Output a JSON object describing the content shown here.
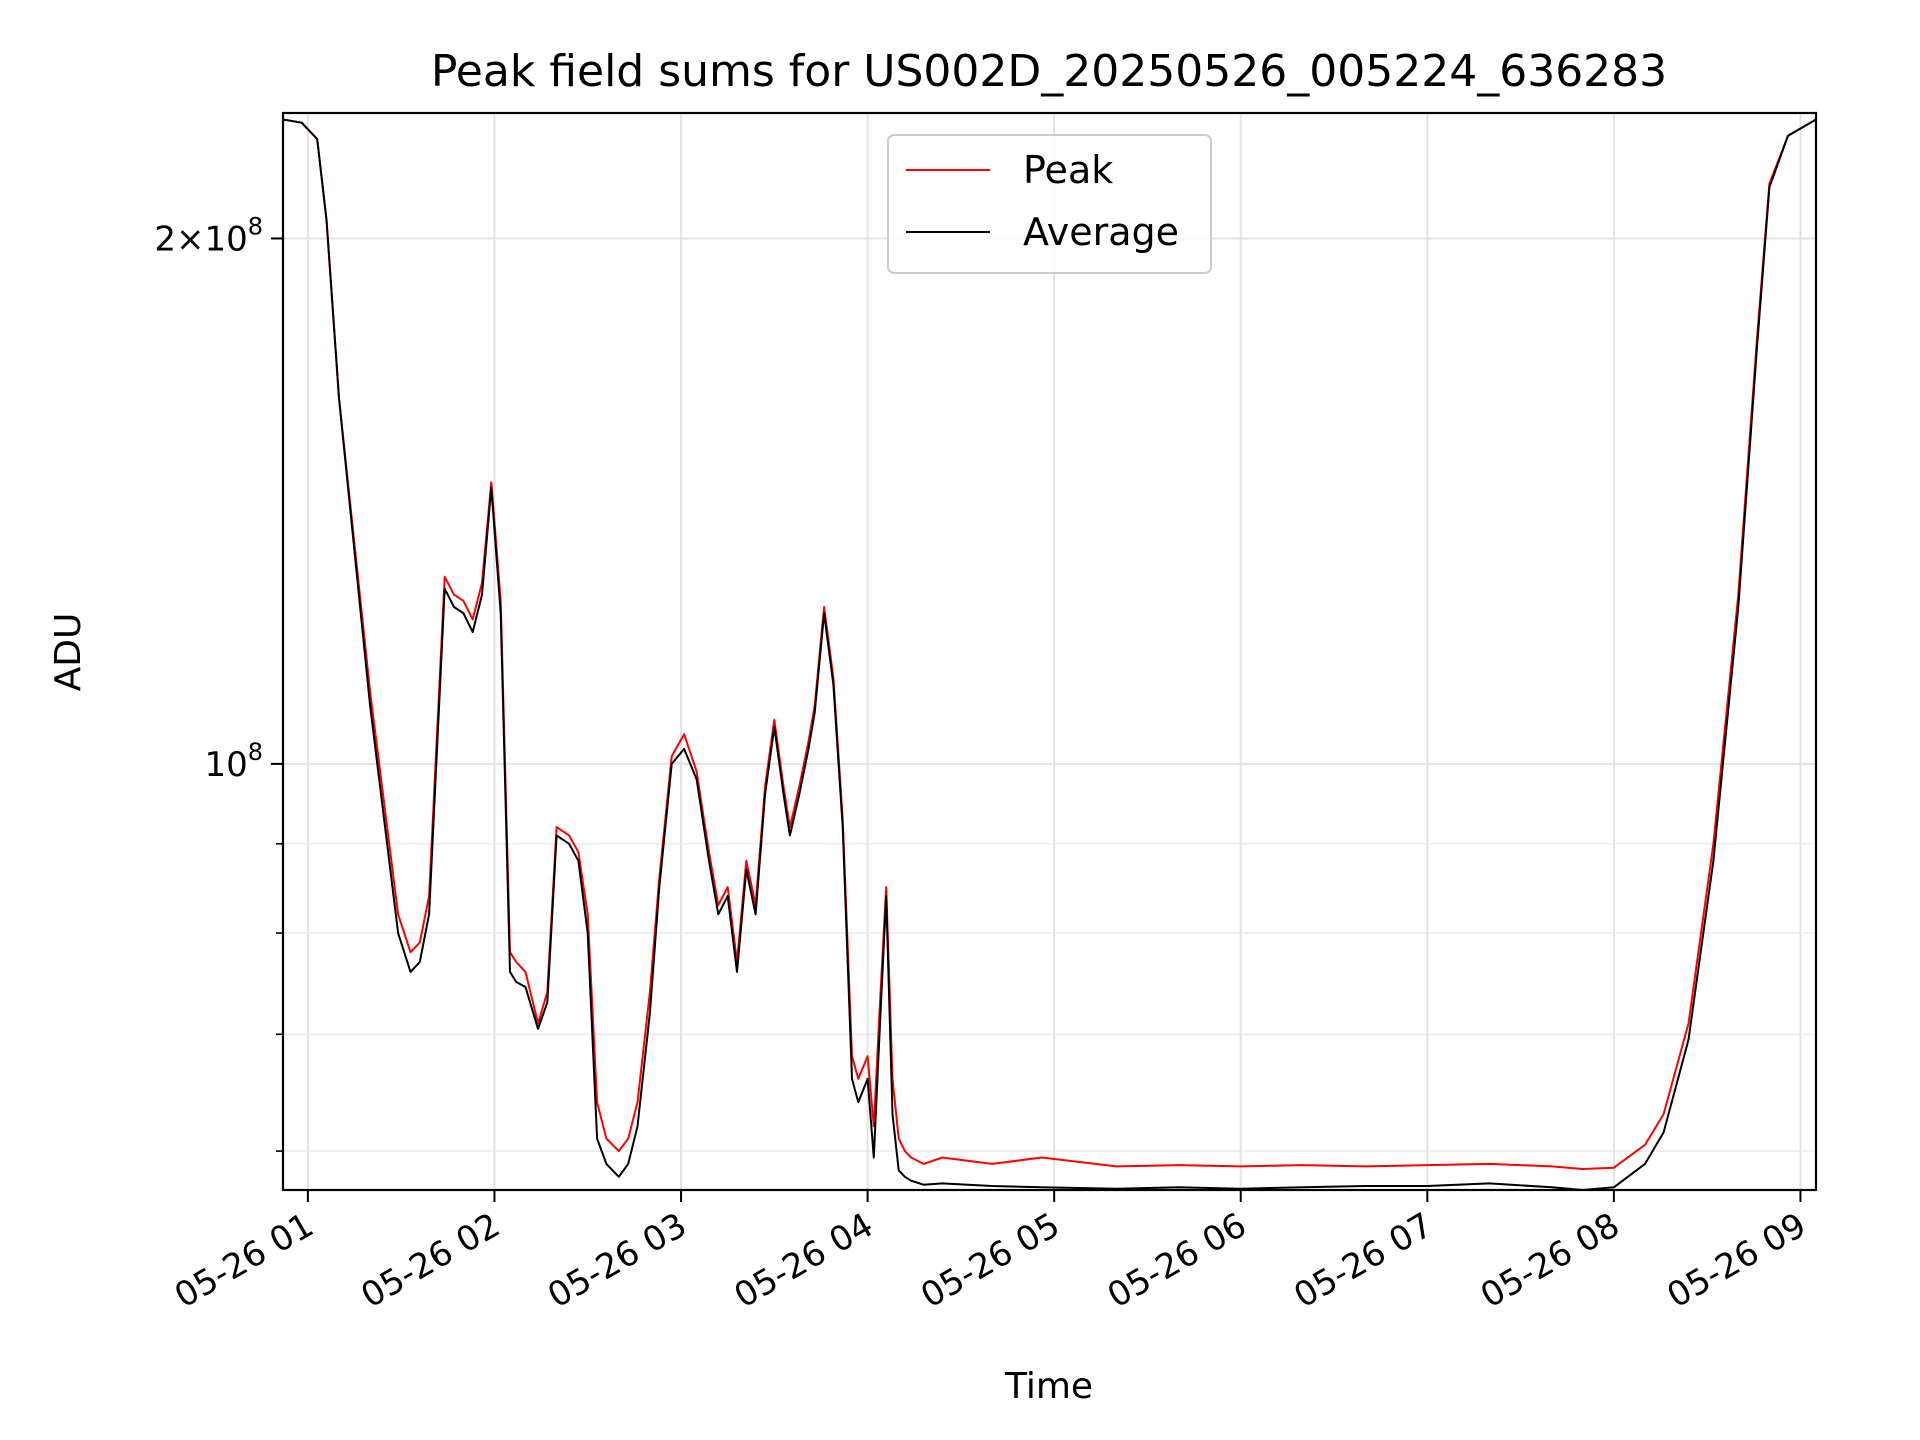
{
  "chart_data": {
    "type": "line",
    "title": "Peak field sums for US002D_20250526_005224_636283",
    "xlabel": "Time",
    "ylabel": "ADU",
    "y_scale": "log",
    "ylim": [
      57000000,
      236000000
    ],
    "xlim": [
      "2025-05-26 00:52",
      "2025-05-26 09:05"
    ],
    "grid": true,
    "legend_position": "upper center",
    "x_ticks": [
      "05-26 01",
      "05-26 02",
      "05-26 03",
      "05-26 04",
      "05-26 05",
      "05-26 06",
      "05-26 07",
      "05-26 08",
      "05-26 09"
    ],
    "y_ticks": [
      {
        "value": 200000000,
        "label_main": "2×10",
        "label_exp": "8"
      },
      {
        "value": 100000000,
        "label_main": "10",
        "label_exp": "8"
      }
    ],
    "y_minor_ticks": [
      60000000,
      70000000,
      80000000,
      90000000
    ],
    "series": [
      {
        "name": "Peak",
        "color": "#ff0000",
        "x": [
          "00:52",
          "00:58",
          "01:03",
          "01:06",
          "01:10",
          "01:20",
          "01:29",
          "01:33",
          "01:36",
          "01:39",
          "01:44",
          "01:47",
          "01:50",
          "01:53",
          "01:56",
          "01:59",
          "02:02",
          "02:05",
          "02:07",
          "02:10",
          "02:14",
          "02:17",
          "02:20",
          "02:24",
          "02:27",
          "02:30",
          "02:33",
          "02:36",
          "02:40",
          "02:43",
          "02:46",
          "02:50",
          "02:53",
          "02:57",
          "03:01",
          "03:05",
          "03:09",
          "03:12",
          "03:15",
          "03:18",
          "03:21",
          "03:24",
          "03:27",
          "03:30",
          "03:33",
          "03:35",
          "03:38",
          "03:41",
          "03:43",
          "03:46",
          "03:49",
          "03:52",
          "03:55",
          "03:57",
          "04:00",
          "04:02",
          "04:04",
          "04:06",
          "04:08",
          "04:10",
          "04:12",
          "04:14",
          "04:18",
          "04:24",
          "04:40",
          "04:56",
          "05:20",
          "05:40",
          "06:00",
          "06:20",
          "06:40",
          "07:00",
          "07:20",
          "07:40",
          "07:50",
          "08:00",
          "08:10",
          "08:16",
          "08:24",
          "08:32",
          "08:40",
          "08:46",
          "08:50",
          "08:56",
          "09:05"
        ],
        "y": [
          234000000,
          233000000,
          228000000,
          205000000,
          162000000,
          110000000,
          82000000,
          78000000,
          79000000,
          84000000,
          128000000,
          125000000,
          124000000,
          121000000,
          127000000,
          145000000,
          124000000,
          78000000,
          77000000,
          76000000,
          71000000,
          74000000,
          92000000,
          91000000,
          89000000,
          82000000,
          64000000,
          61000000,
          60000000,
          61000000,
          64000000,
          74000000,
          86000000,
          101000000,
          104000000,
          99000000,
          89000000,
          83000000,
          85000000,
          77000000,
          88000000,
          83000000,
          97000000,
          106000000,
          97000000,
          92000000,
          97000000,
          103000000,
          108000000,
          123000000,
          112000000,
          93000000,
          68000000,
          66000000,
          68000000,
          62000000,
          73000000,
          85000000,
          66000000,
          61000000,
          60000000,
          59500000,
          59000000,
          59500000,
          59000000,
          59500000,
          58800000,
          58900000,
          58800000,
          58900000,
          58800000,
          58900000,
          59000000,
          58800000,
          58600000,
          58700000,
          60500000,
          63000000,
          71000000,
          90000000,
          125000000,
          175000000,
          215000000,
          229000000,
          234000000
        ]
      },
      {
        "name": "Average",
        "color": "#000000",
        "x": [
          "00:52",
          "00:58",
          "01:03",
          "01:06",
          "01:10",
          "01:20",
          "01:29",
          "01:33",
          "01:36",
          "01:39",
          "01:44",
          "01:47",
          "01:50",
          "01:53",
          "01:56",
          "01:59",
          "02:02",
          "02:05",
          "02:07",
          "02:10",
          "02:14",
          "02:17",
          "02:20",
          "02:24",
          "02:27",
          "02:30",
          "02:33",
          "02:36",
          "02:40",
          "02:43",
          "02:46",
          "02:50",
          "02:53",
          "02:57",
          "03:01",
          "03:05",
          "03:09",
          "03:12",
          "03:15",
          "03:18",
          "03:21",
          "03:24",
          "03:27",
          "03:30",
          "03:33",
          "03:35",
          "03:38",
          "03:41",
          "03:43",
          "03:46",
          "03:49",
          "03:52",
          "03:55",
          "03:57",
          "04:00",
          "04:02",
          "04:04",
          "04:06",
          "04:08",
          "04:10",
          "04:12",
          "04:14",
          "04:18",
          "04:24",
          "04:40",
          "04:56",
          "05:20",
          "05:40",
          "06:00",
          "06:20",
          "06:40",
          "07:00",
          "07:20",
          "07:40",
          "07:50",
          "08:00",
          "08:10",
          "08:16",
          "08:24",
          "08:32",
          "08:40",
          "08:46",
          "08:50",
          "08:56",
          "09:05"
        ],
        "y": [
          234000000,
          233000000,
          228000000,
          205000000,
          162000000,
          108000000,
          80000000,
          76000000,
          77000000,
          82000000,
          126000000,
          123000000,
          122000000,
          119000000,
          125000000,
          144000000,
          122000000,
          76000000,
          75000000,
          74500000,
          70500000,
          73000000,
          91000000,
          90000000,
          88000000,
          80000000,
          61000000,
          59000000,
          58000000,
          59000000,
          62000000,
          72000000,
          85000000,
          100000000,
          102000000,
          98000000,
          88000000,
          82000000,
          84000000,
          76000000,
          87000000,
          82000000,
          96000000,
          105000000,
          96000000,
          91000000,
          96000000,
          102000000,
          107000000,
          122000000,
          111000000,
          92000000,
          66000000,
          64000000,
          66000000,
          59500000,
          71000000,
          84000000,
          63000000,
          58500000,
          58000000,
          57700000,
          57400000,
          57500000,
          57300000,
          57200000,
          57100000,
          57200000,
          57100000,
          57200000,
          57300000,
          57300000,
          57500000,
          57200000,
          57000000,
          57200000,
          59000000,
          61500000,
          69500000,
          88000000,
          123000000,
          173000000,
          214000000,
          229000000,
          234000000
        ]
      }
    ]
  }
}
